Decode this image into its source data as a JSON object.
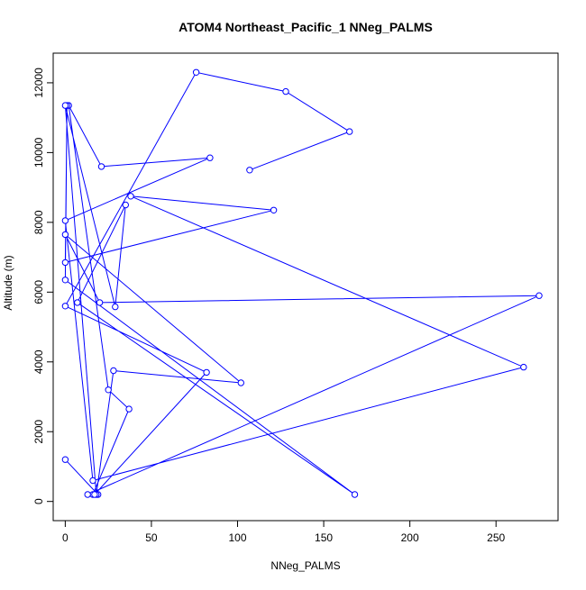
{
  "chart_data": {
    "type": "line",
    "title": "ATOM4 Northeast_Pacific_1 NNeg_PALMS",
    "xlabel": "NNeg_PALMS",
    "ylabel": "Altitude (m)",
    "xlim": [
      -7,
      286
    ],
    "ylim": [
      -550,
      12850
    ],
    "xticks": [
      0,
      50,
      100,
      150,
      200,
      250
    ],
    "yticks": [
      0,
      2000,
      4000,
      6000,
      8000,
      10000,
      12000
    ],
    "grid": false,
    "legend": "none",
    "colors": {
      "series": "#0000ff",
      "axis": "#000000",
      "background": "#ffffff"
    },
    "series": [
      {
        "x": [
          0,
          19,
          16,
          37,
          25,
          2,
          21,
          84,
          0,
          16,
          266,
          38,
          121,
          0,
          1,
          0,
          168,
          7,
          35,
          29,
          0,
          18,
          28,
          102,
          0,
          20,
          275,
          13,
          17,
          82,
          0,
          76,
          128,
          165,
          107
        ],
        "y": [
          1200,
          200,
          200,
          2650,
          3200,
          11350,
          9600,
          9850,
          8050,
          600,
          3850,
          8750,
          8350,
          6850,
          11350,
          6350,
          200,
          5700,
          8500,
          5580,
          11350,
          200,
          3750,
          3400,
          7650,
          5700,
          5900,
          200,
          200,
          3700,
          5600,
          12300,
          11750,
          10600,
          9500
        ]
      }
    ]
  }
}
